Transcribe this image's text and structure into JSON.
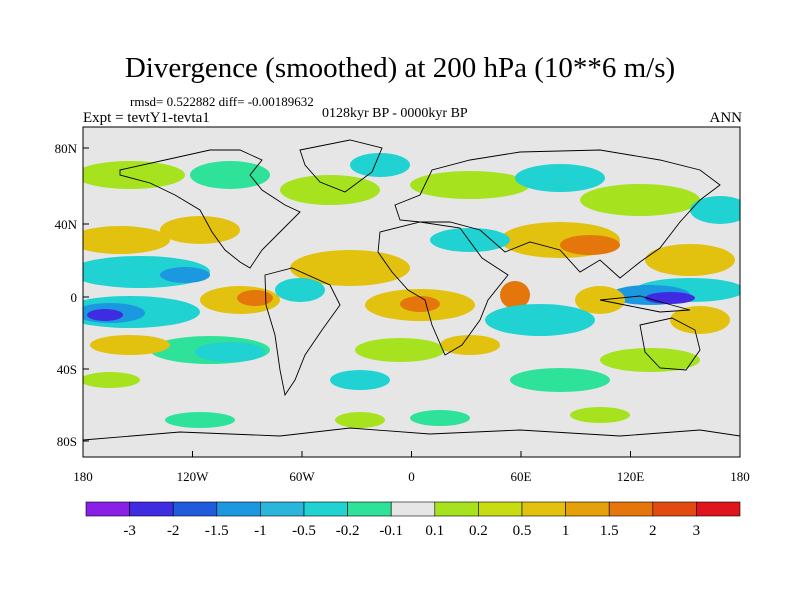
{
  "header": {
    "title": "Divergence (smoothed) at 200 hPa (10**6 m/s)",
    "stats": "rmsd= 0.522882 diff= -0.00189632",
    "period": "0128kyr BP - 0000kyr BP",
    "expt": "Expt = tevtY1-tevta1",
    "season": "ANN"
  },
  "axes": {
    "y_ticks": [
      "80N",
      "40N",
      "0",
      "40S",
      "80S"
    ],
    "x_ticks": [
      "180",
      "120W",
      "60W",
      "0",
      "60E",
      "120E",
      "180"
    ]
  },
  "colorbar": {
    "colors": [
      "#8a1fe6",
      "#3f2be2",
      "#1f5bdc",
      "#1c98e0",
      "#2ab6da",
      "#20d2d2",
      "#2ee29a",
      "#e6e6e6",
      "#a6e21e",
      "#c8dc14",
      "#e2c20e",
      "#e4a10c",
      "#e4760c",
      "#e24a10",
      "#e0141e"
    ],
    "labels": [
      "-3",
      "-2",
      "-1.5",
      "-1",
      "-0.5",
      "-0.2",
      "-0.1",
      "0.1",
      "0.2",
      "0.5",
      "1",
      "1.5",
      "2",
      "3"
    ]
  },
  "field_colors": {
    "neutral": "#e6e6e6",
    "pos1": "#a6e21e",
    "pos2": "#e2c20e",
    "pos3": "#e4760c",
    "pos4": "#e24a10",
    "neg1": "#2ee29a",
    "neg2": "#20d2d2",
    "neg3": "#1c98e0",
    "neg4": "#3f2be2",
    "coast": "#000000"
  }
}
